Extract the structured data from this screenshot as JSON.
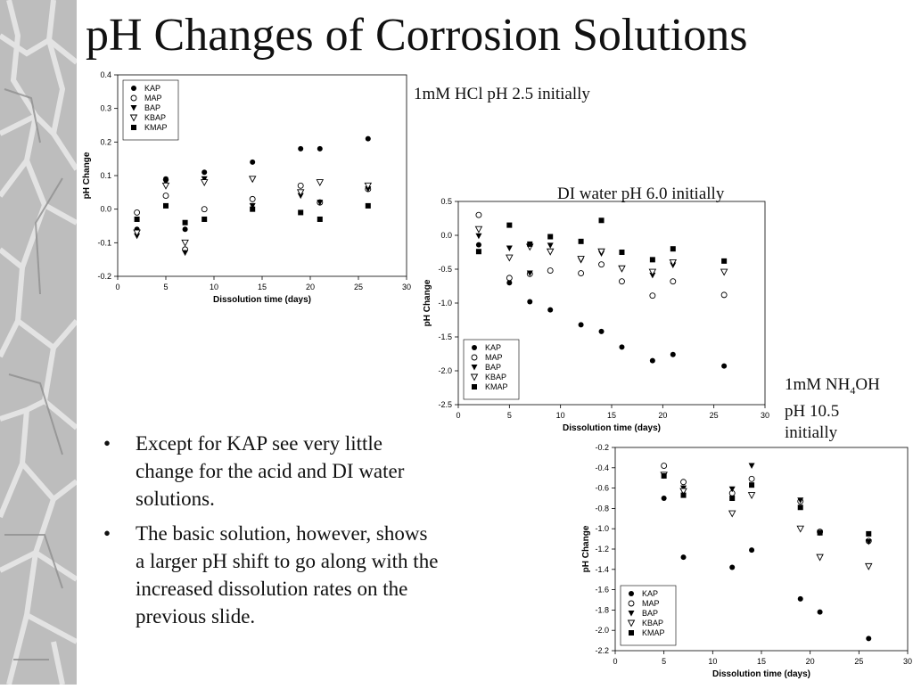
{
  "slide": {
    "title": "pH Changes of Corrosion Solutions",
    "bullets": [
      "Except for KAP see very little change for the acid and DI water solutions.",
      "The basic solution, however, shows a larger pH shift to go along with the increased dissolution rates on the previous slide."
    ]
  },
  "captions": {
    "acid": "1mM HCl pH 2.5 initially",
    "di": "DI water pH 6.0 initially",
    "base": [
      "1mM NH",
      "4",
      "OH",
      "pH 10.5",
      "initially"
    ]
  },
  "chart_data": [
    {
      "type": "scatter",
      "title": "",
      "xlabel": "Dissolution time (days)",
      "ylabel": "pH Change",
      "xlim": [
        0,
        30
      ],
      "ylim": [
        -0.2,
        0.4
      ],
      "xticks": [
        0,
        5,
        10,
        15,
        20,
        25,
        30
      ],
      "yticks": [
        -0.2,
        -0.1,
        0.0,
        0.1,
        0.2,
        0.3,
        0.4
      ],
      "legend": "top-left",
      "series": [
        {
          "name": "KAP",
          "marker": "filled-circle",
          "points": [
            [
              2,
              -0.06
            ],
            [
              5,
              0.09
            ],
            [
              7,
              -0.06
            ],
            [
              9,
              0.11
            ],
            [
              14,
              0.14
            ],
            [
              19,
              0.18
            ],
            [
              21,
              0.18
            ],
            [
              26,
              0.21
            ]
          ]
        },
        {
          "name": "MAP",
          "marker": "open-circle",
          "points": [
            [
              2,
              -0.01
            ],
            [
              5,
              0.04
            ],
            [
              7,
              -0.12
            ],
            [
              9,
              0.0
            ],
            [
              14,
              0.03
            ],
            [
              19,
              0.07
            ],
            [
              21,
              0.02
            ],
            [
              26,
              0.06
            ]
          ]
        },
        {
          "name": "BAP",
          "marker": "filled-triangle",
          "points": [
            [
              2,
              -0.08
            ],
            [
              5,
              0.08
            ],
            [
              7,
              -0.13
            ],
            [
              9,
              0.09
            ],
            [
              14,
              0.01
            ],
            [
              19,
              0.04
            ],
            [
              21,
              0.02
            ],
            [
              26,
              0.06
            ]
          ]
        },
        {
          "name": "KBAP",
          "marker": "open-triangle",
          "points": [
            [
              2,
              -0.07
            ],
            [
              5,
              0.07
            ],
            [
              7,
              -0.1
            ],
            [
              9,
              0.08
            ],
            [
              14,
              0.09
            ],
            [
              19,
              0.05
            ],
            [
              21,
              0.08
            ],
            [
              26,
              0.07
            ]
          ]
        },
        {
          "name": "KMAP",
          "marker": "filled-square",
          "points": [
            [
              2,
              -0.03
            ],
            [
              5,
              0.01
            ],
            [
              7,
              -0.04
            ],
            [
              9,
              -0.03
            ],
            [
              14,
              0.0
            ],
            [
              19,
              -0.01
            ],
            [
              21,
              -0.03
            ],
            [
              26,
              0.01
            ]
          ]
        }
      ]
    },
    {
      "type": "scatter",
      "title": "",
      "xlabel": "Dissolution time (days)",
      "ylabel": "pH Change",
      "xlim": [
        0,
        30
      ],
      "ylim": [
        -2.5,
        0.5
      ],
      "xticks": [
        0,
        5,
        10,
        15,
        20,
        25,
        30
      ],
      "yticks": [
        -2.5,
        -2.0,
        -1.5,
        -1.0,
        -0.5,
        0.0,
        0.5
      ],
      "legend": "bottom-left",
      "series": [
        {
          "name": "KAP",
          "marker": "filled-circle",
          "points": [
            [
              2,
              -0.14
            ],
            [
              5,
              -0.7
            ],
            [
              7,
              -0.98
            ],
            [
              9,
              -1.1
            ],
            [
              12,
              -1.32
            ],
            [
              14,
              -1.42
            ],
            [
              16,
              -1.65
            ],
            [
              19,
              -1.85
            ],
            [
              21,
              -1.76
            ],
            [
              26,
              -1.93
            ]
          ]
        },
        {
          "name": "MAP",
          "marker": "open-circle",
          "points": [
            [
              2,
              0.3
            ],
            [
              5,
              -0.63
            ],
            [
              7,
              -0.57
            ],
            [
              9,
              -0.52
            ],
            [
              12,
              -0.56
            ],
            [
              14,
              -0.43
            ],
            [
              16,
              -0.68
            ],
            [
              19,
              -0.89
            ],
            [
              21,
              -0.68
            ],
            [
              26,
              -0.88
            ]
          ]
        },
        {
          "name": "BAP",
          "marker": "filled-triangle",
          "points": [
            [
              2,
              -0.01
            ],
            [
              5,
              -0.19
            ],
            [
              7,
              -0.56
            ],
            [
              9,
              -0.15
            ],
            [
              12,
              -0.37
            ],
            [
              14,
              -0.27
            ],
            [
              16,
              -0.5
            ],
            [
              19,
              -0.59
            ],
            [
              21,
              -0.44
            ],
            [
              26,
              -0.55
            ]
          ]
        },
        {
          "name": "KBAP",
          "marker": "open-triangle",
          "points": [
            [
              2,
              0.09
            ],
            [
              5,
              -0.33
            ],
            [
              7,
              -0.17
            ],
            [
              9,
              -0.24
            ],
            [
              12,
              -0.35
            ],
            [
              14,
              -0.24
            ],
            [
              16,
              -0.49
            ],
            [
              19,
              -0.54
            ],
            [
              21,
              -0.4
            ],
            [
              26,
              -0.54
            ]
          ]
        },
        {
          "name": "KMAP",
          "marker": "filled-square",
          "points": [
            [
              2,
              -0.24
            ],
            [
              5,
              0.15
            ],
            [
              7,
              -0.13
            ],
            [
              9,
              -0.02
            ],
            [
              12,
              -0.09
            ],
            [
              14,
              0.22
            ],
            [
              16,
              -0.25
            ],
            [
              19,
              -0.36
            ],
            [
              21,
              -0.2
            ],
            [
              26,
              -0.38
            ]
          ]
        }
      ]
    },
    {
      "type": "scatter",
      "title": "",
      "xlabel": "Dissolution time (days)",
      "ylabel": "pH Change",
      "xlim": [
        0,
        30
      ],
      "ylim": [
        -2.2,
        -0.2
      ],
      "xticks": [
        0,
        5,
        10,
        15,
        20,
        25,
        30
      ],
      "yticks": [
        -2.2,
        -2.0,
        -1.8,
        -1.6,
        -1.4,
        -1.2,
        -1.0,
        -0.8,
        -0.6,
        -0.4,
        -0.2
      ],
      "legend": "bottom-left",
      "series": [
        {
          "name": "KAP",
          "marker": "filled-circle",
          "points": [
            [
              5,
              -0.7
            ],
            [
              7,
              -1.28
            ],
            [
              12,
              -1.38
            ],
            [
              14,
              -1.21
            ],
            [
              19,
              -1.69
            ],
            [
              21,
              -1.82
            ],
            [
              26,
              -2.08
            ]
          ]
        },
        {
          "name": "MAP",
          "marker": "open-circle",
          "points": [
            [
              5,
              -0.38
            ],
            [
              7,
              -0.54
            ],
            [
              12,
              -0.65
            ],
            [
              14,
              -0.51
            ],
            [
              19,
              -0.73
            ],
            [
              21,
              -1.03
            ],
            [
              26,
              -1.12
            ]
          ]
        },
        {
          "name": "BAP",
          "marker": "filled-triangle",
          "points": [
            [
              5,
              -0.47
            ],
            [
              7,
              -0.6
            ],
            [
              12,
              -0.61
            ],
            [
              14,
              -0.38
            ],
            [
              19,
              -0.72
            ],
            [
              21,
              -1.04
            ],
            [
              26,
              -1.13
            ]
          ]
        },
        {
          "name": "KBAP",
          "marker": "open-triangle",
          "points": [
            [
              5,
              -0.47
            ],
            [
              7,
              -0.63
            ],
            [
              12,
              -0.85
            ],
            [
              14,
              -0.67
            ],
            [
              19,
              -1.0
            ],
            [
              21,
              -1.28
            ],
            [
              26,
              -1.37
            ]
          ]
        },
        {
          "name": "KMAP",
          "marker": "filled-square",
          "points": [
            [
              5,
              -0.48
            ],
            [
              7,
              -0.67
            ],
            [
              12,
              -0.7
            ],
            [
              14,
              -0.57
            ],
            [
              19,
              -0.79
            ],
            [
              21,
              -1.04
            ],
            [
              26,
              -1.05
            ]
          ]
        }
      ]
    }
  ]
}
